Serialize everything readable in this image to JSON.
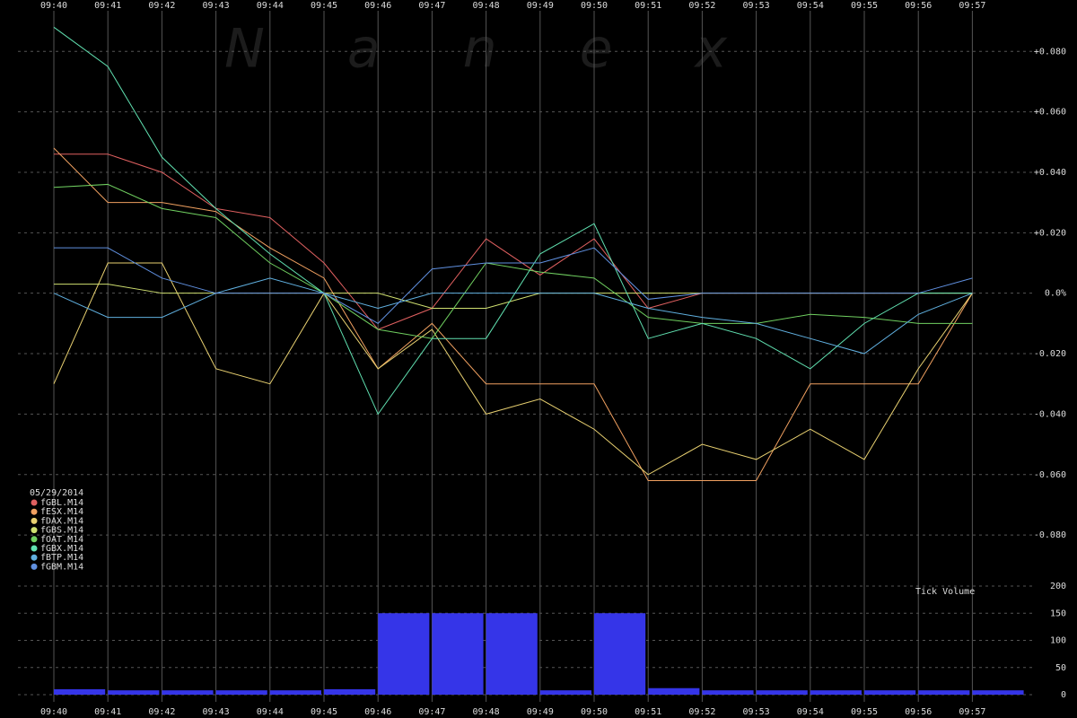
{
  "watermark": "N a n e x",
  "chart_data": [
    {
      "type": "line",
      "date": "05/29/2014",
      "x": [
        "09:40",
        "09:41",
        "09:42",
        "09:43",
        "09:44",
        "09:45",
        "09:46",
        "09:47",
        "09:48",
        "09:49",
        "09:50",
        "09:51",
        "09:52",
        "09:53",
        "09:54",
        "09:55",
        "09:56",
        "09:57"
      ],
      "ylim": [
        -0.096,
        0.097
      ],
      "yticks": [
        {
          "value": 0.08,
          "label": "+0.080"
        },
        {
          "value": 0.06,
          "label": "+0.060"
        },
        {
          "value": 0.04,
          "label": "+0.040"
        },
        {
          "value": 0.02,
          "label": "+0.020"
        },
        {
          "value": 0,
          "label": "0.0%"
        },
        {
          "value": -0.02,
          "label": "-0.020"
        },
        {
          "value": -0.04,
          "label": "-0.040"
        },
        {
          "value": -0.06,
          "label": "-0.060"
        },
        {
          "value": -0.08,
          "label": "-0.080"
        }
      ],
      "grid": true,
      "series": [
        {
          "name": "fGBL.M14",
          "color": "#e06060",
          "values": [
            0.046,
            0.046,
            0.04,
            0.028,
            0.025,
            0.01,
            -0.012,
            -0.005,
            0.018,
            0.006,
            0.018,
            -0.005,
            0.0,
            0.0,
            0.0,
            0.0,
            0.0,
            0.0
          ]
        },
        {
          "name": "fESX.M14",
          "color": "#f0a060",
          "values": [
            0.048,
            0.03,
            0.03,
            0.027,
            0.015,
            0.005,
            -0.025,
            -0.01,
            -0.03,
            -0.03,
            -0.03,
            -0.062,
            -0.062,
            -0.062,
            -0.03,
            -0.03,
            -0.03,
            0.0
          ]
        },
        {
          "name": "fDAX.M14",
          "color": "#e8d070",
          "values": [
            -0.03,
            0.01,
            0.01,
            -0.025,
            -0.03,
            0.0,
            -0.025,
            -0.012,
            -0.04,
            -0.035,
            -0.045,
            -0.06,
            -0.05,
            -0.055,
            -0.045,
            -0.055,
            -0.025,
            0.0
          ]
        },
        {
          "name": "fGBS.M14",
          "color": "#d0e070",
          "values": [
            0.003,
            0.003,
            0.0,
            0.0,
            0.0,
            0.0,
            0.0,
            -0.005,
            -0.005,
            0.0,
            0.0,
            0.0,
            0.0,
            0.0,
            0.0,
            0.0,
            0.0,
            0.0
          ]
        },
        {
          "name": "fOAT.M14",
          "color": "#70d060",
          "values": [
            0.035,
            0.036,
            0.028,
            0.025,
            0.01,
            0.0,
            -0.012,
            -0.015,
            0.01,
            0.007,
            0.005,
            -0.008,
            -0.01,
            -0.01,
            -0.007,
            -0.008,
            -0.01,
            -0.01
          ]
        },
        {
          "name": "fGBX.M14",
          "color": "#60e0b0",
          "values": [
            0.088,
            0.075,
            0.045,
            0.028,
            0.013,
            0.0,
            -0.04,
            -0.015,
            -0.015,
            0.013,
            0.023,
            -0.015,
            -0.01,
            -0.015,
            -0.025,
            -0.01,
            0.0,
            0.0
          ]
        },
        {
          "name": "fBTP.M14",
          "color": "#60b0e0",
          "values": [
            0.0,
            -0.008,
            -0.008,
            0.0,
            0.005,
            0.0,
            -0.005,
            0.0,
            0.0,
            0.0,
            0.0,
            -0.005,
            -0.008,
            -0.01,
            -0.015,
            -0.02,
            -0.007,
            0.0
          ]
        },
        {
          "name": "fGBM.M14",
          "color": "#6090e0",
          "values": [
            0.015,
            0.015,
            0.005,
            0.0,
            0.0,
            0.0,
            -0.01,
            0.008,
            0.01,
            0.01,
            0.015,
            -0.002,
            0.0,
            0.0,
            0.0,
            0.0,
            0.0,
            0.005
          ]
        }
      ]
    },
    {
      "type": "bar",
      "title": "Tick Volume",
      "color": "#3535e8",
      "x": [
        "09:40",
        "09:41",
        "09:42",
        "09:43",
        "09:44",
        "09:45",
        "09:46",
        "09:47",
        "09:48",
        "09:49",
        "09:50",
        "09:51",
        "09:52",
        "09:53",
        "09:54",
        "09:55",
        "09:56",
        "09:57"
      ],
      "values": [
        10,
        8,
        8,
        8,
        8,
        10,
        150,
        150,
        150,
        8,
        150,
        12,
        8,
        8,
        8,
        8,
        8,
        8
      ],
      "ylim": [
        0,
        200
      ],
      "yticks": [
        200,
        150,
        100,
        50,
        0
      ],
      "grid": true
    }
  ]
}
